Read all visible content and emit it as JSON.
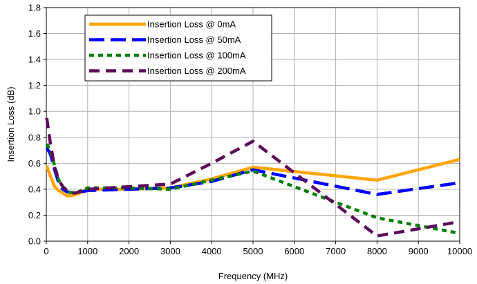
{
  "chart_data": {
    "type": "line",
    "title": "",
    "xlabel": "Frequency (MHz)",
    "ylabel": "Insertion Loss (dB)",
    "xlim": [
      0,
      10000
    ],
    "ylim": [
      0,
      1.8
    ],
    "xticks": [
      0,
      1000,
      2000,
      3000,
      4000,
      5000,
      6000,
      7000,
      8000,
      9000,
      10000
    ],
    "yticks": [
      0.0,
      0.2,
      0.4,
      0.6,
      0.8,
      1.0,
      1.2,
      1.4,
      1.6,
      1.8
    ],
    "xtick_labels": [
      "0",
      "1000",
      "2000",
      "3000",
      "4000",
      "5000",
      "6000",
      "7000",
      "8000",
      "9000",
      "10000"
    ],
    "ytick_labels": [
      "0.0",
      "0.2",
      "0.4",
      "0.6",
      "0.8",
      "1.0",
      "1.2",
      "1.4",
      "1.6",
      "1.8"
    ],
    "grid": true,
    "legend_position": "top-left",
    "series": [
      {
        "name": "Insertion Loss @ 0mA",
        "color": "#FFA500",
        "style": "solid",
        "x": [
          10,
          100,
          200,
          300,
          500,
          600,
          800,
          1000,
          2000,
          3000,
          4000,
          5000,
          8000,
          10000
        ],
        "y": [
          0.58,
          0.5,
          0.42,
          0.39,
          0.35,
          0.35,
          0.37,
          0.4,
          0.4,
          0.41,
          0.48,
          0.57,
          0.47,
          0.63
        ]
      },
      {
        "name": "Insertion Loss @ 50mA",
        "color": "#0000FF",
        "style": "longdash",
        "x": [
          10,
          100,
          200,
          300,
          400,
          500,
          700,
          1000,
          2000,
          3000,
          4000,
          5000,
          8000,
          10000
        ],
        "y": [
          0.72,
          0.67,
          0.55,
          0.45,
          0.4,
          0.38,
          0.37,
          0.39,
          0.4,
          0.41,
          0.46,
          0.55,
          0.36,
          0.45
        ]
      },
      {
        "name": "Insertion Loss @ 100mA",
        "color": "#008000",
        "style": "dotted",
        "x": [
          10,
          100,
          200,
          300,
          400,
          500,
          700,
          1000,
          2000,
          3000,
          4000,
          5000,
          8000,
          10000
        ],
        "y": [
          0.75,
          0.7,
          0.58,
          0.47,
          0.42,
          0.38,
          0.37,
          0.41,
          0.41,
          0.4,
          0.47,
          0.54,
          0.18,
          0.06
        ]
      },
      {
        "name": "Insertion Loss @ 200mA",
        "color": "#5C0A5C",
        "style": "dash",
        "x": [
          10,
          100,
          200,
          300,
          400,
          500,
          700,
          1000,
          2000,
          3000,
          4000,
          5000,
          8000,
          10000
        ],
        "y": [
          0.95,
          0.75,
          0.57,
          0.47,
          0.42,
          0.39,
          0.37,
          0.4,
          0.42,
          0.44,
          0.6,
          0.77,
          0.04,
          0.15
        ]
      }
    ]
  }
}
